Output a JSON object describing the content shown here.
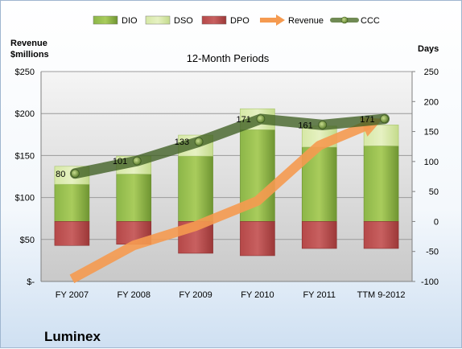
{
  "chart_data": {
    "type": "bar",
    "title": "12-Month Periods",
    "company": "Luminex",
    "ylabel_left": "Revenue\n$millions",
    "ylabel_right": "Days",
    "categories": [
      "FY 2007",
      "FY 2008",
      "FY 2009",
      "FY 2010",
      "FY 2011",
      "TTM 9-2012"
    ],
    "y_left": {
      "min": 0,
      "max": 250,
      "ticks": [
        0,
        50,
        100,
        150,
        200,
        250
      ],
      "tick_labels": [
        "$-",
        "$50",
        "$100",
        "$150",
        "$200",
        "$250"
      ]
    },
    "y_right": {
      "min": -100,
      "max": 250,
      "ticks": [
        -100,
        -50,
        0,
        50,
        100,
        150,
        200,
        250
      ],
      "tick_labels": [
        "-100",
        "-50",
        "0",
        "50",
        "100",
        "150",
        "200",
        "250"
      ]
    },
    "legend": {
      "position": "top",
      "items": [
        {
          "name": "DIO",
          "type": "bar",
          "color": "#7fa83c"
        },
        {
          "name": "DSO",
          "type": "bar",
          "color": "#cde29a"
        },
        {
          "name": "DPO",
          "type": "bar",
          "color": "#b04444"
        },
        {
          "name": "Revenue",
          "type": "arrow",
          "color": "#f59a50"
        },
        {
          "name": "CCC",
          "type": "line",
          "color": "#4d6e2a"
        }
      ]
    },
    "series": [
      {
        "name": "DIO",
        "axis": "right",
        "values": [
          62,
          79,
          109,
          153,
          124,
          126
        ]
      },
      {
        "name": "DSO",
        "axis": "right",
        "values": [
          30,
          30,
          35,
          35,
          35,
          35
        ]
      },
      {
        "name": "DPO",
        "axis": "right",
        "values": [
          -40,
          -38,
          -53,
          -57,
          -45,
          -45
        ]
      },
      {
        "name": "Revenue",
        "axis": "left",
        "values": [
          3,
          43,
          66,
          96,
          162,
          193
        ]
      },
      {
        "name": "CCC",
        "axis": "right",
        "values": [
          80,
          101,
          133,
          171,
          161,
          171
        ],
        "labels": [
          "80",
          "101",
          "133",
          "171",
          "161",
          "171"
        ]
      }
    ],
    "grid": true
  }
}
